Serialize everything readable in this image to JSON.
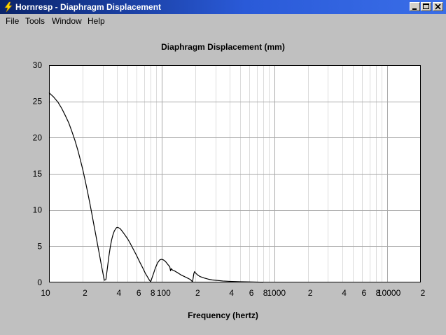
{
  "window": {
    "title": "Hornresp - Diaphragm Displacement",
    "icon": "lightning-icon",
    "controls": [
      "minimize-icon",
      "maximize-icon",
      "close-icon"
    ]
  },
  "menu": {
    "items": [
      "File",
      "Tools",
      "Window",
      "Help"
    ]
  },
  "chart_data": {
    "type": "line",
    "title": "Diaphragm Displacement (mm)",
    "xlabel": "Frequency (hertz)",
    "ylabel": "",
    "xscale": "log",
    "xlim": [
      10,
      20000
    ],
    "ylim": [
      0,
      30
    ],
    "grid": true,
    "y_ticks": [
      0,
      5,
      10,
      15,
      20,
      25,
      30
    ],
    "x_ticks": [
      {
        "value": 10,
        "label": "10"
      },
      {
        "value": 20,
        "label": "2"
      },
      {
        "value": 40,
        "label": "4"
      },
      {
        "value": 60,
        "label": "6"
      },
      {
        "value": 80,
        "label": "8"
      },
      {
        "value": 100,
        "label": "100"
      },
      {
        "value": 200,
        "label": "2"
      },
      {
        "value": 400,
        "label": "4"
      },
      {
        "value": 600,
        "label": "6"
      },
      {
        "value": 800,
        "label": "8"
      },
      {
        "value": 1000,
        "label": "1000"
      },
      {
        "value": 2000,
        "label": "2"
      },
      {
        "value": 4000,
        "label": "4"
      },
      {
        "value": 6000,
        "label": "6"
      },
      {
        "value": 8000,
        "label": "8"
      },
      {
        "value": 10000,
        "label": "10000"
      },
      {
        "value": 20000,
        "label": "2"
      }
    ],
    "series": [
      {
        "color": "#000000",
        "x": [
          10,
          11,
          12,
          13,
          14,
          15,
          16,
          17,
          18,
          19,
          20,
          21,
          22,
          23,
          24,
          25,
          26,
          27,
          28,
          29,
          30,
          31,
          32,
          33,
          34,
          35,
          36,
          37,
          38,
          39,
          40,
          41,
          42,
          43,
          44,
          45,
          47,
          50,
          53,
          56,
          60,
          64,
          68,
          72,
          76,
          78,
          80,
          82,
          85,
          88,
          92,
          96,
          100,
          104,
          108,
          112,
          116,
          118,
          120,
          122,
          125,
          130,
          140,
          150,
          160,
          170,
          180,
          185,
          188,
          190,
          193,
          196,
          200,
          210,
          220,
          240,
          260,
          280,
          300,
          350,
          400,
          450,
          500,
          600,
          700,
          800
        ],
        "y": [
          26.2,
          25.6,
          24.9,
          24.0,
          23.0,
          22.0,
          20.8,
          19.6,
          18.3,
          16.9,
          15.5,
          14.0,
          12.5,
          11.0,
          9.5,
          8.0,
          6.6,
          5.2,
          3.9,
          2.6,
          1.4,
          0.3,
          0.4,
          2.0,
          3.6,
          4.9,
          5.9,
          6.6,
          7.1,
          7.4,
          7.6,
          7.6,
          7.5,
          7.4,
          7.2,
          7.0,
          6.6,
          6.0,
          5.3,
          4.6,
          3.7,
          2.8,
          2.0,
          1.2,
          0.6,
          0.3,
          0.1,
          0.6,
          1.3,
          2.0,
          2.7,
          3.1,
          3.2,
          3.1,
          2.9,
          2.6,
          2.3,
          2.2,
          1.6,
          1.9,
          1.7,
          1.6,
          1.3,
          1.0,
          0.8,
          0.6,
          0.4,
          0.2,
          0.1,
          0.5,
          1.2,
          1.5,
          1.3,
          1.0,
          0.8,
          0.6,
          0.45,
          0.35,
          0.3,
          0.2,
          0.15,
          0.12,
          0.1,
          0.07,
          0.05,
          0.03
        ]
      }
    ]
  }
}
